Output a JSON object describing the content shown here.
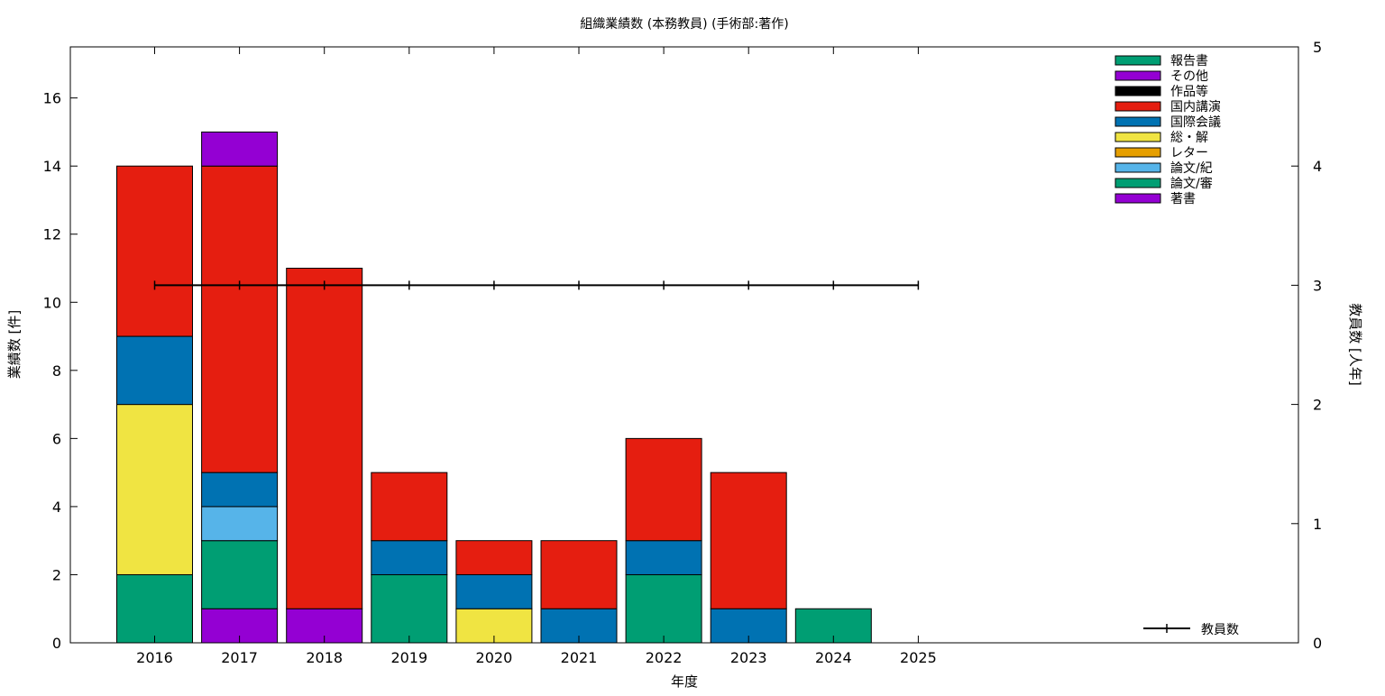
{
  "chart_data": {
    "type": "bar",
    "title": "組織業績数 (本務教員) (手術部:著作)",
    "xlabel": "年度",
    "ylabel": "業績数 [件]",
    "y2label": "教員数 [人年]",
    "ylim": [
      0,
      17.5
    ],
    "y2lim": [
      0,
      5
    ],
    "y_ticks": [
      0,
      2,
      4,
      6,
      8,
      10,
      12,
      14,
      16
    ],
    "y2_ticks": [
      0,
      1,
      2,
      3,
      4,
      5
    ],
    "categories": [
      "2016",
      "2017",
      "2018",
      "2019",
      "2020",
      "2021",
      "2022",
      "2023",
      "2024",
      "2025"
    ],
    "legend_position": "top-right",
    "series": [
      {
        "name": "著書",
        "color": "#9400d3",
        "values": [
          0,
          1,
          1,
          0,
          0,
          0,
          0,
          0,
          0,
          0
        ]
      },
      {
        "name": "論文/審",
        "color": "#009e73",
        "values": [
          2,
          2,
          0,
          2,
          0,
          0,
          2,
          0,
          1,
          0
        ]
      },
      {
        "name": "論文/紀",
        "color": "#56b4e9",
        "values": [
          0,
          1,
          0,
          0,
          0,
          0,
          0,
          0,
          0,
          0
        ]
      },
      {
        "name": "レター",
        "color": "#e69f00",
        "values": [
          0,
          0,
          0,
          0,
          0,
          0,
          0,
          0,
          0,
          0
        ]
      },
      {
        "name": "総・解",
        "color": "#f0e442",
        "values": [
          5,
          0,
          0,
          0,
          1,
          0,
          0,
          0,
          0,
          0
        ]
      },
      {
        "name": "国際会議",
        "color": "#0072b2",
        "values": [
          2,
          1,
          0,
          1,
          1,
          1,
          1,
          1,
          0,
          0
        ]
      },
      {
        "name": "国内講演",
        "color": "#e51e10",
        "values": [
          5,
          9,
          10,
          2,
          1,
          2,
          3,
          4,
          0,
          0
        ]
      },
      {
        "name": "作品等",
        "color": "#000000",
        "values": [
          0,
          0,
          0,
          0,
          0,
          0,
          0,
          0,
          0,
          0
        ]
      },
      {
        "name": "その他",
        "color": "#9400d3",
        "values": [
          0,
          1,
          0,
          0,
          0,
          0,
          0,
          0,
          0,
          0
        ]
      },
      {
        "name": "報告書",
        "color": "#009e73",
        "values": [
          0,
          0,
          0,
          0,
          0,
          0,
          0,
          0,
          0,
          0
        ]
      }
    ],
    "legend_order": [
      "報告書",
      "その他",
      "作品等",
      "国内講演",
      "国際会議",
      "総・解",
      "レター",
      "論文/紀",
      "論文/審",
      "著書"
    ],
    "line_series": {
      "name": "教員数",
      "axis": "y2",
      "color": "#000000",
      "values": [
        3,
        3,
        3,
        3,
        3,
        3,
        3,
        3,
        3,
        3
      ]
    }
  }
}
